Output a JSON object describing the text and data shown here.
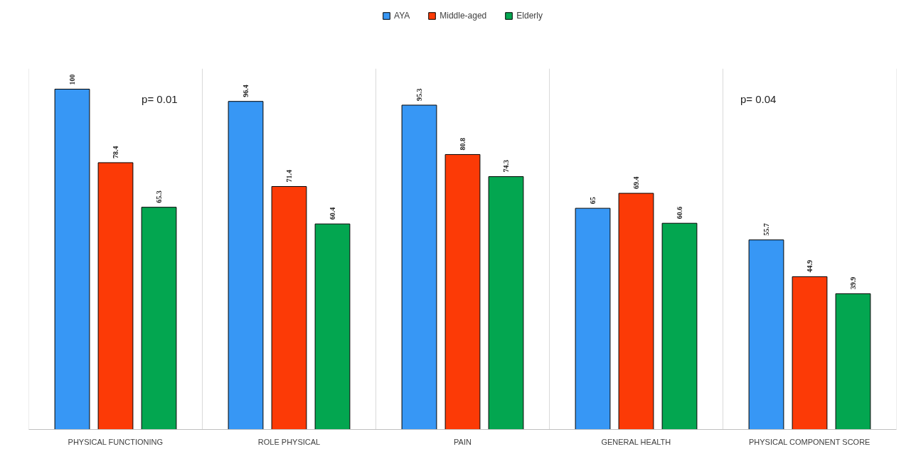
{
  "chart_data": {
    "type": "bar",
    "categories": [
      "PHYSICAL FUNCTIONING",
      "ROLE PHYSICAL",
      "PAIN",
      "GENERAL HEALTH",
      "PHYSICAL COMPONENT SCORE"
    ],
    "series": [
      {
        "name": "AYA",
        "color": "#3797f5",
        "values": [
          100,
          96.4,
          95.3,
          65,
          55.7
        ]
      },
      {
        "name": "Middle-aged",
        "color": "#fc3a06",
        "values": [
          78.4,
          71.4,
          80.8,
          69.4,
          44.9
        ]
      },
      {
        "name": "Elderly",
        "color": "#03a650",
        "values": [
          65.3,
          60.4,
          74.3,
          60.6,
          39.9
        ]
      }
    ],
    "annotations": [
      "p= 0.01",
      "p= 0.04"
    ],
    "data_labels": true,
    "grid": "x",
    "legend": "top"
  }
}
